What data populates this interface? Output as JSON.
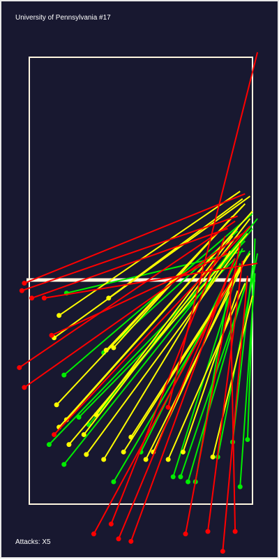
{
  "title": "University of Pennsylvania #17",
  "footer": "Attacks: X5",
  "colors": {
    "background": "#181830",
    "court_lines": "#fff6e0",
    "net": "#fff6e0",
    "kill": "#ff0000",
    "error": "#ff0000",
    "in_play": "#ffff00",
    "dug": "#00ee00"
  },
  "chart_data": {
    "type": "scatter",
    "title": "University of Pennsylvania #17",
    "subtitle": "Attacks: X5",
    "court": {
      "x_range": [
        0,
        9
      ],
      "y_range": [
        0,
        18
      ],
      "net_y": 9
    },
    "legend": [],
    "series": [
      {
        "color": "red",
        "attacks": [
          {
            "from": [
              9.2,
              -0.2
            ],
            "to": [
              5.6,
              14.1
            ]
          },
          {
            "from": [
              8.7,
              5.5
            ],
            "to": [
              -0.2,
              9.1
            ]
          },
          {
            "from": [
              8.4,
              6.4
            ],
            "to": [
              -0.3,
              9.4
            ]
          },
          {
            "from": [
              8.0,
              6.9
            ],
            "to": [
              0.1,
              9.7
            ]
          },
          {
            "from": [
              8.3,
              6.6
            ],
            "to": [
              -0.4,
              12.5
            ]
          },
          {
            "from": [
              8.6,
              7.1
            ],
            "to": [
              -0.2,
              13.3
            ]
          },
          {
            "from": [
              8.9,
              6.8
            ],
            "to": [
              1.0,
              15.2
            ]
          },
          {
            "from": [
              7.9,
              7.2
            ],
            "to": [
              3.3,
              18.8
            ]
          },
          {
            "from": [
              8.5,
              7.5
            ],
            "to": [
              6.3,
              19.2
            ]
          },
          {
            "from": [
              8.3,
              8.1
            ],
            "to": [
              3.6,
              19.4
            ]
          },
          {
            "from": [
              8.2,
              8.3
            ],
            "to": [
              4.1,
              19.5
            ]
          },
          {
            "from": [
              8.4,
              8.5
            ],
            "to": [
              2.6,
              19.2
            ]
          },
          {
            "from": [
              8.6,
              8.2
            ],
            "to": [
              7.2,
              19.1
            ]
          },
          {
            "from": [
              8.1,
              9.3
            ],
            "to": [
              8.3,
              19.1
            ]
          },
          {
            "from": [
              8.8,
              8.8
            ],
            "to": [
              7.8,
              19.9
            ]
          },
          {
            "from": [
              8.0,
              7.9
            ],
            "to": [
              0.9,
              11.2
            ]
          },
          {
            "from": [
              9.2,
              8.3
            ],
            "to": [
              0.6,
              9.7
            ]
          }
        ]
      },
      {
        "color": "yellow",
        "attacks": [
          {
            "from": [
              8.5,
              5.4
            ],
            "to": [
              1.2,
              10.4
            ]
          },
          {
            "from": [
              8.9,
              5.6
            ],
            "to": [
              1.0,
              11.3
            ]
          },
          {
            "from": [
              8.6,
              6.0
            ],
            "to": [
              3.1,
              11.8
            ]
          },
          {
            "from": [
              8.2,
              6.4
            ],
            "to": [
              3.4,
              11.7
            ]
          },
          {
            "from": [
              8.7,
              5.9
            ],
            "to": [
              1.1,
              14.0
            ]
          },
          {
            "from": [
              9.0,
              6.2
            ],
            "to": [
              1.2,
              14.9
            ]
          },
          {
            "from": [
              8.4,
              6.9
            ],
            "to": [
              1.5,
              14.6
            ]
          },
          {
            "from": [
              8.8,
              7.1
            ],
            "to": [
              1.6,
              15.6
            ]
          },
          {
            "from": [
              8.5,
              7.6
            ],
            "to": [
              2.3,
              16.0
            ]
          },
          {
            "from": [
              8.1,
              7.8
            ],
            "to": [
              3.0,
              16.2
            ]
          },
          {
            "from": [
              8.9,
              7.9
            ],
            "to": [
              3.8,
              15.9
            ]
          },
          {
            "from": [
              8.6,
              8.4
            ],
            "to": [
              4.7,
              16.2
            ]
          },
          {
            "from": [
              8.3,
              8.8
            ],
            "to": [
              5.0,
              15.9
            ]
          },
          {
            "from": [
              8.7,
              9.1
            ],
            "to": [
              5.6,
              16.2
            ]
          },
          {
            "from": [
              8.4,
              9.4
            ],
            "to": [
              6.2,
              15.9
            ]
          },
          {
            "from": [
              9.0,
              9.6
            ],
            "to": [
              7.4,
              16.1
            ]
          },
          {
            "from": [
              8.9,
              6.5
            ],
            "to": [
              2.2,
              15.2
            ]
          },
          {
            "from": [
              8.2,
              7.2
            ],
            "to": [
              2.7,
              14.4
            ]
          },
          {
            "from": [
              8.8,
              8.0
            ],
            "to": [
              4.1,
              15.3
            ]
          },
          {
            "from": [
              8.6,
              5.7
            ],
            "to": [
              3.2,
              9.7
            ]
          }
        ]
      },
      {
        "color": "green",
        "attacks": [
          {
            "from": [
              9.0,
              6.9
            ],
            "to": [
              1.4,
              16.4
            ]
          },
          {
            "from": [
              8.7,
              7.4
            ],
            "to": [
              0.8,
              15.6
            ]
          },
          {
            "from": [
              9.2,
              6.5
            ],
            "to": [
              2.4,
              14.8
            ]
          },
          {
            "from": [
              8.9,
              7.8
            ],
            "to": [
              3.4,
              17.1
            ]
          },
          {
            "from": [
              8.5,
              8.3
            ],
            "to": [
              5.8,
              16.9
            ]
          },
          {
            "from": [
              8.8,
              9.0
            ],
            "to": [
              6.1,
              16.9
            ]
          },
          {
            "from": [
              9.1,
              8.7
            ],
            "to": [
              8.5,
              17.3
            ]
          },
          {
            "from": [
              9.1,
              7.3
            ],
            "to": [
              8.8,
              15.4
            ]
          },
          {
            "from": [
              8.4,
              7.0
            ],
            "to": [
              3.0,
              11.9
            ]
          },
          {
            "from": [
              9.0,
              6.3
            ],
            "to": [
              1.4,
              12.8
            ]
          },
          {
            "from": [
              8.6,
              7.7
            ],
            "to": [
              4.5,
              15.9
            ]
          },
          {
            "from": [
              9.2,
              7.9
            ],
            "to": [
              7.6,
              16.1
            ]
          },
          {
            "from": [
              8.3,
              8.1
            ],
            "to": [
              2.0,
              14.5
            ]
          },
          {
            "from": [
              8.1,
              9.0
            ],
            "to": [
              6.7,
              17.1
            ]
          },
          {
            "from": [
              8.7,
              7.8
            ],
            "to": [
              1.5,
              9.5
            ]
          },
          {
            "from": [
              9.0,
              8.4
            ],
            "to": [
              8.2,
              15.5
            ]
          },
          {
            "from": [
              8.8,
              8.9
            ],
            "to": [
              6.4,
              17.1
            ]
          }
        ]
      }
    ]
  }
}
